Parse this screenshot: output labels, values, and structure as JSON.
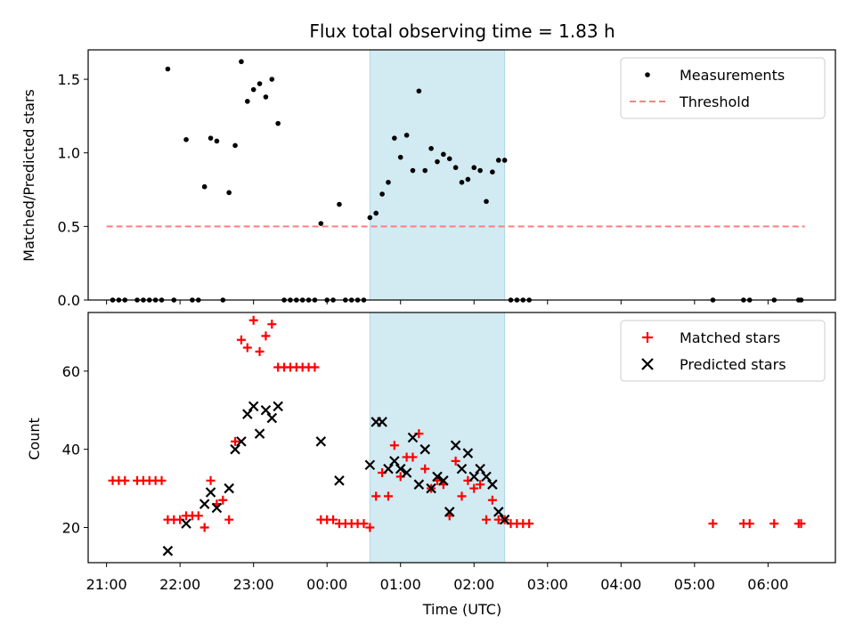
{
  "chart_data": {
    "title": "Flux total observing time = 1.83 h",
    "xlabel": "Time (UTC)",
    "xlim": [
      "20:45",
      "06:55"
    ],
    "xtick_labels": [
      "21:00",
      "22:00",
      "23:00",
      "00:00",
      "01:00",
      "02:00",
      "03:00",
      "04:00",
      "05:00",
      "06:00"
    ],
    "highlight_span": {
      "start": "00:35",
      "end": "02:25",
      "color": "#add8e6"
    },
    "panels": [
      {
        "type": "scatter",
        "ylabel": "Matched/Predicted stars",
        "ylim": [
          0,
          1.7
        ],
        "ytick_values": [
          0.0,
          0.5,
          1.0,
          1.5
        ],
        "ytick_labels": [
          "0.0",
          "0.5",
          "1.0",
          "1.5"
        ],
        "legend_position": "top-right",
        "series": [
          {
            "name": "Measurements",
            "marker": "dot",
            "color": "#000000",
            "points": [
              [
                "21:05",
                0
              ],
              [
                "21:10",
                0
              ],
              [
                "21:15",
                0
              ],
              [
                "21:25",
                0
              ],
              [
                "21:30",
                0
              ],
              [
                "21:35",
                0
              ],
              [
                "21:40",
                0
              ],
              [
                "21:45",
                0
              ],
              [
                "21:55",
                0
              ],
              [
                "22:10",
                0
              ],
              [
                "22:15",
                0
              ],
              [
                "22:35",
                0
              ],
              [
                "21:50",
                1.57
              ],
              [
                "22:05",
                1.09
              ],
              [
                "22:20",
                0.77
              ],
              [
                "22:25",
                1.1
              ],
              [
                "22:30",
                1.08
              ],
              [
                "22:40",
                0.73
              ],
              [
                "22:45",
                1.05
              ],
              [
                "22:50",
                1.62
              ],
              [
                "22:55",
                1.35
              ],
              [
                "23:00",
                1.43
              ],
              [
                "23:05",
                1.47
              ],
              [
                "23:10",
                1.38
              ],
              [
                "23:15",
                1.5
              ],
              [
                "23:20",
                1.2
              ],
              [
                "23:25",
                0
              ],
              [
                "23:30",
                0
              ],
              [
                "23:35",
                0
              ],
              [
                "23:40",
                0
              ],
              [
                "23:45",
                0
              ],
              [
                "23:50",
                0
              ],
              [
                "00:00",
                0
              ],
              [
                "00:05",
                0
              ],
              [
                "00:15",
                0
              ],
              [
                "00:20",
                0
              ],
              [
                "00:25",
                0
              ],
              [
                "00:30",
                0
              ],
              [
                "23:55",
                0.52
              ],
              [
                "00:10",
                0.65
              ],
              [
                "00:35",
                0.56
              ],
              [
                "00:40",
                0.59
              ],
              [
                "00:45",
                0.72
              ],
              [
                "00:50",
                0.8
              ],
              [
                "00:55",
                1.1
              ],
              [
                "01:00",
                0.97
              ],
              [
                "01:05",
                1.12
              ],
              [
                "01:10",
                0.88
              ],
              [
                "01:15",
                1.42
              ],
              [
                "01:20",
                0.88
              ],
              [
                "01:25",
                1.03
              ],
              [
                "01:30",
                0.94
              ],
              [
                "01:35",
                0.99
              ],
              [
                "01:40",
                0.96
              ],
              [
                "01:45",
                0.9
              ],
              [
                "01:50",
                0.8
              ],
              [
                "01:55",
                0.82
              ],
              [
                "02:00",
                0.9
              ],
              [
                "02:05",
                0.88
              ],
              [
                "02:10",
                0.67
              ],
              [
                "02:15",
                0.87
              ],
              [
                "02:20",
                0.95
              ],
              [
                "02:25",
                0.95
              ],
              [
                "02:30",
                0
              ],
              [
                "02:35",
                0
              ],
              [
                "02:40",
                0
              ],
              [
                "02:45",
                0
              ],
              [
                "05:15",
                0
              ],
              [
                "05:40",
                0
              ],
              [
                "05:45",
                0
              ],
              [
                "06:05",
                0
              ],
              [
                "06:25",
                0
              ],
              [
                "06:27",
                0
              ]
            ]
          },
          {
            "name": "Threshold",
            "marker": "dashed-line",
            "color": "#ff7f7f",
            "x_range": [
              "21:00",
              "06:30"
            ],
            "value": 0.5
          }
        ]
      },
      {
        "type": "scatter",
        "ylabel": "Count",
        "ylim": [
          11,
          75
        ],
        "ytick_values": [
          20,
          40,
          60
        ],
        "ytick_labels": [
          "20",
          "40",
          "60"
        ],
        "legend_position": "top-right",
        "series": [
          {
            "name": "Matched stars",
            "marker": "plus",
            "color": "#ff0000",
            "points": [
              [
                "21:05",
                32
              ],
              [
                "21:10",
                32
              ],
              [
                "21:15",
                32
              ],
              [
                "21:25",
                32
              ],
              [
                "21:30",
                32
              ],
              [
                "21:35",
                32
              ],
              [
                "21:40",
                32
              ],
              [
                "21:45",
                32
              ],
              [
                "21:50",
                22
              ],
              [
                "21:55",
                22
              ],
              [
                "22:00",
                22
              ],
              [
                "22:05",
                23
              ],
              [
                "22:10",
                23
              ],
              [
                "22:15",
                23
              ],
              [
                "22:20",
                20
              ],
              [
                "22:25",
                32
              ],
              [
                "22:30",
                26
              ],
              [
                "22:35",
                27
              ],
              [
                "22:40",
                22
              ],
              [
                "22:45",
                42
              ],
              [
                "22:50",
                68
              ],
              [
                "22:55",
                66
              ],
              [
                "23:00",
                73
              ],
              [
                "23:05",
                65
              ],
              [
                "23:10",
                69
              ],
              [
                "23:15",
                72
              ],
              [
                "23:20",
                61
              ],
              [
                "23:25",
                61
              ],
              [
                "23:30",
                61
              ],
              [
                "23:35",
                61
              ],
              [
                "23:40",
                61
              ],
              [
                "23:45",
                61
              ],
              [
                "23:50",
                61
              ],
              [
                "23:55",
                22
              ],
              [
                "00:00",
                22
              ],
              [
                "00:05",
                22
              ],
              [
                "00:10",
                21
              ],
              [
                "00:15",
                21
              ],
              [
                "00:20",
                21
              ],
              [
                "00:25",
                21
              ],
              [
                "00:30",
                21
              ],
              [
                "00:35",
                20
              ],
              [
                "00:40",
                28
              ],
              [
                "00:45",
                34
              ],
              [
                "00:50",
                28
              ],
              [
                "00:55",
                41
              ],
              [
                "01:00",
                33
              ],
              [
                "01:05",
                38
              ],
              [
                "01:10",
                38
              ],
              [
                "01:15",
                44
              ],
              [
                "01:20",
                35
              ],
              [
                "01:25",
                30
              ],
              [
                "01:30",
                32
              ],
              [
                "01:35",
                31
              ],
              [
                "01:40",
                23
              ],
              [
                "01:45",
                37
              ],
              [
                "01:50",
                28
              ],
              [
                "01:55",
                32
              ],
              [
                "02:00",
                30
              ],
              [
                "02:05",
                31
              ],
              [
                "02:10",
                22
              ],
              [
                "02:15",
                27
              ],
              [
                "02:20",
                22
              ],
              [
                "02:25",
                22
              ],
              [
                "02:30",
                21
              ],
              [
                "02:35",
                21
              ],
              [
                "02:40",
                21
              ],
              [
                "02:45",
                21
              ],
              [
                "05:15",
                21
              ],
              [
                "05:40",
                21
              ],
              [
                "05:45",
                21
              ],
              [
                "06:05",
                21
              ],
              [
                "06:25",
                21
              ],
              [
                "06:27",
                21
              ]
            ]
          },
          {
            "name": "Predicted stars",
            "marker": "x",
            "color": "#000000",
            "points": [
              [
                "21:50",
                14
              ],
              [
                "22:05",
                21
              ],
              [
                "22:20",
                26
              ],
              [
                "22:25",
                29
              ],
              [
                "22:30",
                25
              ],
              [
                "22:40",
                30
              ],
              [
                "22:45",
                40
              ],
              [
                "22:50",
                42
              ],
              [
                "22:55",
                49
              ],
              [
                "23:00",
                51
              ],
              [
                "23:05",
                44
              ],
              [
                "23:10",
                50
              ],
              [
                "23:15",
                48
              ],
              [
                "23:20",
                51
              ],
              [
                "23:55",
                42
              ],
              [
                "00:10",
                32
              ],
              [
                "00:35",
                36
              ],
              [
                "00:40",
                47
              ],
              [
                "00:45",
                47
              ],
              [
                "00:50",
                35
              ],
              [
                "00:55",
                37
              ],
              [
                "01:00",
                35
              ],
              [
                "01:05",
                34
              ],
              [
                "01:10",
                43
              ],
              [
                "01:15",
                31
              ],
              [
                "01:20",
                40
              ],
              [
                "01:25",
                30
              ],
              [
                "01:30",
                33
              ],
              [
                "01:35",
                32
              ],
              [
                "01:40",
                24
              ],
              [
                "01:45",
                41
              ],
              [
                "01:50",
                35
              ],
              [
                "01:55",
                39
              ],
              [
                "02:00",
                33
              ],
              [
                "02:05",
                35
              ],
              [
                "02:10",
                33
              ],
              [
                "02:15",
                31
              ],
              [
                "02:20",
                24
              ],
              [
                "02:25",
                22
              ]
            ]
          }
        ]
      }
    ]
  }
}
